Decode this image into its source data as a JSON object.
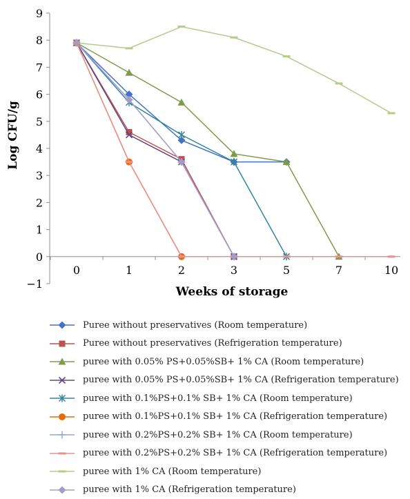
{
  "chart_data": {
    "type": "line",
    "xlabel": "Weeks of storage",
    "ylabel": "Log CFU/g",
    "categories": [
      "0",
      "1",
      "2",
      "3",
      "5",
      "7",
      "10"
    ],
    "ylim": [
      -1,
      9
    ],
    "yticks": [
      -1,
      0,
      1,
      2,
      3,
      4,
      5,
      6,
      7,
      8,
      9
    ],
    "grid": false,
    "legend_position": "bottom",
    "series": [
      {
        "name": "Puree without preservatives (Room temperature)",
        "color": "#4472c4",
        "marker": "diamond",
        "values": [
          7.9,
          6.0,
          4.3,
          3.5,
          3.5,
          null,
          null
        ]
      },
      {
        "name": "Puree without preservatives (Refrigeration temperature)",
        "color": "#c0504d",
        "marker": "square",
        "values": [
          7.9,
          4.6,
          3.6,
          0,
          null,
          null,
          null
        ]
      },
      {
        "name": "puree with 0.05% PS+0.05%SB+ 1% CA (Room temperature)",
        "color": "#7f9a48",
        "marker": "triangle",
        "values": [
          7.9,
          6.8,
          5.7,
          3.8,
          3.5,
          0,
          null
        ]
      },
      {
        "name": "puree with 0.05% PS+0.05%SB+ 1% CA (Refrigeration temperature)",
        "color": "#604a7b",
        "marker": "x",
        "values": [
          7.9,
          4.5,
          3.5,
          0,
          null,
          null,
          null
        ]
      },
      {
        "name": "puree with 0.1%PS+0.1% SB+ 1% CA (Room temperature)",
        "color": "#31859c",
        "marker": "star",
        "values": [
          7.9,
          5.7,
          4.5,
          3.5,
          0,
          null,
          null
        ]
      },
      {
        "name": "puree with 0.1%PS+0.1% SB+ 1% CA (Refrigeration temperature)",
        "color": "#e46c0a",
        "marker": "circle",
        "values": [
          7.9,
          3.5,
          0,
          null,
          null,
          null,
          null
        ]
      },
      {
        "name": "puree with 0.2%PS+0.2% SB+ 1% CA (Room temperature)",
        "color": "#8eaadb",
        "marker": "plus",
        "values": [
          7.9,
          5.8,
          3.5,
          0,
          null,
          null,
          null
        ]
      },
      {
        "name": "puree with 0.2%PS+0.2% SB+ 1% CA (Refrigeration temperature)",
        "color": "#e6928f",
        "marker": "dash",
        "values": [
          7.9,
          3.5,
          0,
          0,
          0,
          0,
          0
        ]
      },
      {
        "name": "puree with 1% CA (Room temperature)",
        "color": "#b3cc8a",
        "marker": "dash",
        "values": [
          7.9,
          7.7,
          8.5,
          8.1,
          7.4,
          6.4,
          5.3
        ]
      },
      {
        "name": "puree with 1% CA (Refrigeration temperature)",
        "color": "#a59bc7",
        "marker": "diamond",
        "values": [
          7.9,
          5.8,
          3.5,
          0,
          null,
          null,
          null
        ]
      }
    ]
  }
}
